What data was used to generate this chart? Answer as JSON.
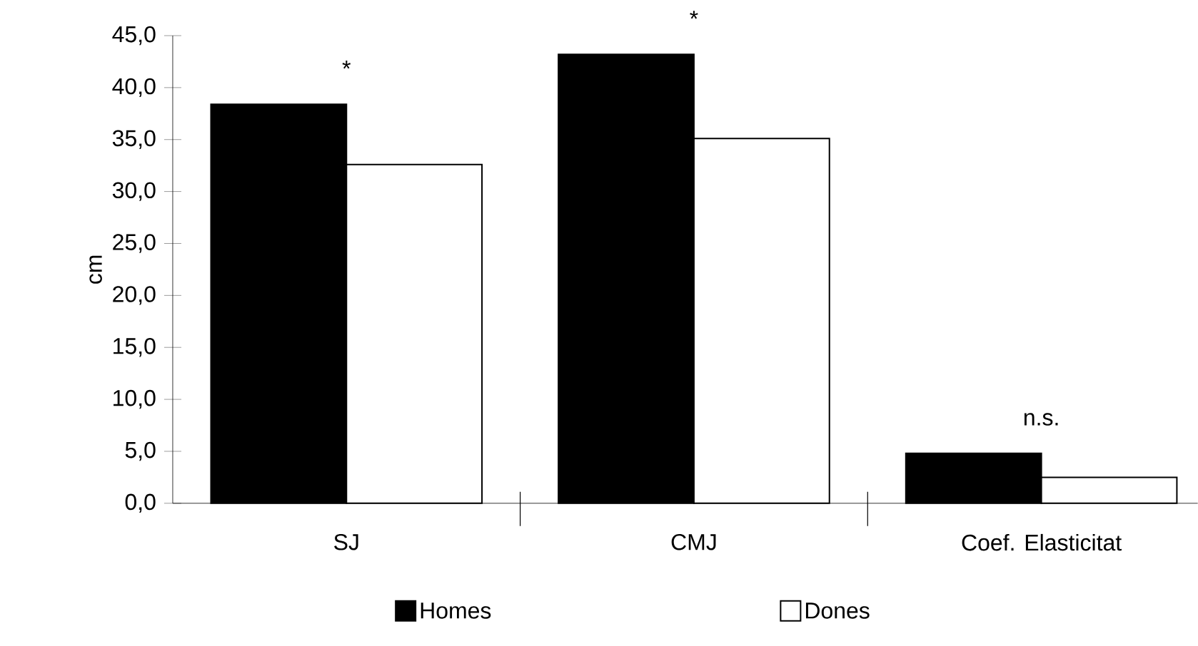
{
  "chart_data": {
    "type": "bar",
    "ylabel": "cm",
    "categories": [
      "SJ",
      "CMJ",
      "Coef. Elasticitat"
    ],
    "series": [
      {
        "name": "Homes",
        "color": "#000000",
        "values": [
          38.4,
          43.2,
          4.8
        ]
      },
      {
        "name": "Dones",
        "color": "#ffffff",
        "values": [
          32.6,
          35.1,
          2.5
        ]
      }
    ],
    "ylim": [
      0,
      45
    ],
    "yticks": [
      {
        "value": 0,
        "label": "0,0"
      },
      {
        "value": 5,
        "label": "5,0"
      },
      {
        "value": 10,
        "label": "10,0"
      },
      {
        "value": 15,
        "label": "15,0"
      },
      {
        "value": 20,
        "label": "20,0"
      },
      {
        "value": 25,
        "label": "25,0"
      },
      {
        "value": 30,
        "label": "30,0"
      },
      {
        "value": 35,
        "label": "35,0"
      },
      {
        "value": 40,
        "label": "40,0"
      },
      {
        "value": 45,
        "label": "45,0"
      }
    ],
    "annotations": [
      "*",
      "*",
      "n.s."
    ],
    "grid": false,
    "legend": "bottom"
  }
}
